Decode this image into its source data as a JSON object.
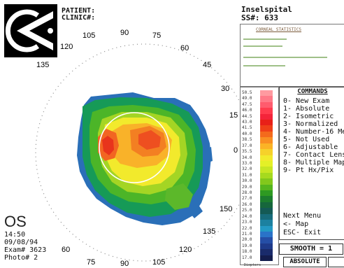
{
  "header": {
    "patient_label": "PATIENT:",
    "clinic_label": "CLINIC#:",
    "hospital": "Inselspital",
    "ss_label": "SS#:",
    "ss_value": "633"
  },
  "statistics": {
    "title": "CORNEAL STATISTICS"
  },
  "map": {
    "axis_labels": {
      "a0": "0",
      "a15": "15",
      "a30": "30",
      "a45": "45",
      "a60": "60",
      "a75": "75",
      "a90": "90",
      "a105": "105",
      "a120": "120",
      "a135": "135",
      "a150": "150",
      "a165": "165",
      "a180": "180"
    },
    "lower_labels": {
      "b60": "60",
      "b75": "75",
      "b90": "90",
      "b105": "105",
      "b120": "120",
      "b135": "135",
      "b150": "150"
    }
  },
  "eye": {
    "side": "OS",
    "time": "14:50",
    "date": "09/08/94",
    "exam_label": "Exam#",
    "exam_value": "3623",
    "photo_label": "Photo#",
    "photo_value": "2"
  },
  "scale": {
    "values": [
      "50.5",
      "49.0",
      "47.5",
      "46.0",
      "44.5",
      "43.0",
      "41.5",
      "40.0",
      "38.5",
      "37.0",
      "35.5",
      "34.0",
      "33.0",
      "32.0",
      "31.0",
      "30.0",
      "29.0",
      "28.0",
      "27.0",
      "26.0",
      "25.0",
      "24.0",
      "23.0",
      "22.0",
      "21.0",
      "20.0",
      "19.0",
      "18.0",
      "17.0"
    ],
    "unit": "Diopters",
    "colors": [
      "#ff9aa0",
      "#ff7a88",
      "#ff5c6e",
      "#ff3c4e",
      "#f4243a",
      "#e82018",
      "#ef4018",
      "#f46a1c",
      "#f98f22",
      "#fbb326",
      "#f6d12a",
      "#f2ea2c",
      "#e4f027",
      "#c7e623",
      "#a6da1e",
      "#82c81c",
      "#55b51e",
      "#2e9a22",
      "#1c7d2e",
      "#16673c",
      "#145a55",
      "#176b7a",
      "#1c81a0",
      "#2399c4",
      "#2a73c8",
      "#254ea6",
      "#1e3a8a",
      "#1a2b6b",
      "#141d4d"
    ]
  },
  "commands": {
    "title": "COMMANDS",
    "items": [
      "0- New Exam",
      "1- Absolute",
      "2- Isometric",
      "3- Normalized",
      "4- Number-16 Me",
      "5- Not Used",
      "6- Adjustable",
      "7- Contact Lens",
      "8- Multiple Map",
      "9- Pt Hx/Pix"
    ],
    "footer": [
      "Next Menu",
      "<- Map",
      "ESC- Exit"
    ],
    "smooth": "SMOOTH = 1",
    "mode": "ABSOLUTE"
  }
}
